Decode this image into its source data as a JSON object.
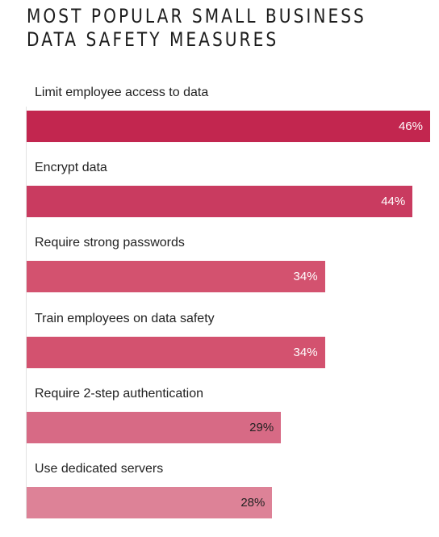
{
  "chart_data": {
    "type": "bar",
    "orientation": "horizontal",
    "title": "MOST POPULAR SMALL BUSINESS\nDATA SAFETY MEASURES",
    "categories": [
      "Limit employee access to data",
      "Encrypt data",
      "Require strong passwords",
      "Train employees on data safety",
      "Require 2-step authentication",
      "Use dedicated servers"
    ],
    "values": [
      46,
      44,
      34,
      34,
      29,
      28
    ],
    "value_labels": [
      "46%",
      "44%",
      "34%",
      "34%",
      "29%",
      "28%"
    ],
    "xlim": [
      0,
      46
    ],
    "grid": false,
    "colors": [
      "#c2264f",
      "#c93b60",
      "#d3526f",
      "#d3526f",
      "#d76a85",
      "#dd8297"
    ],
    "label_colors": [
      "#ffffff",
      "#ffffff",
      "#ffffff",
      "#ffffff",
      "#222222",
      "#222222"
    ]
  }
}
